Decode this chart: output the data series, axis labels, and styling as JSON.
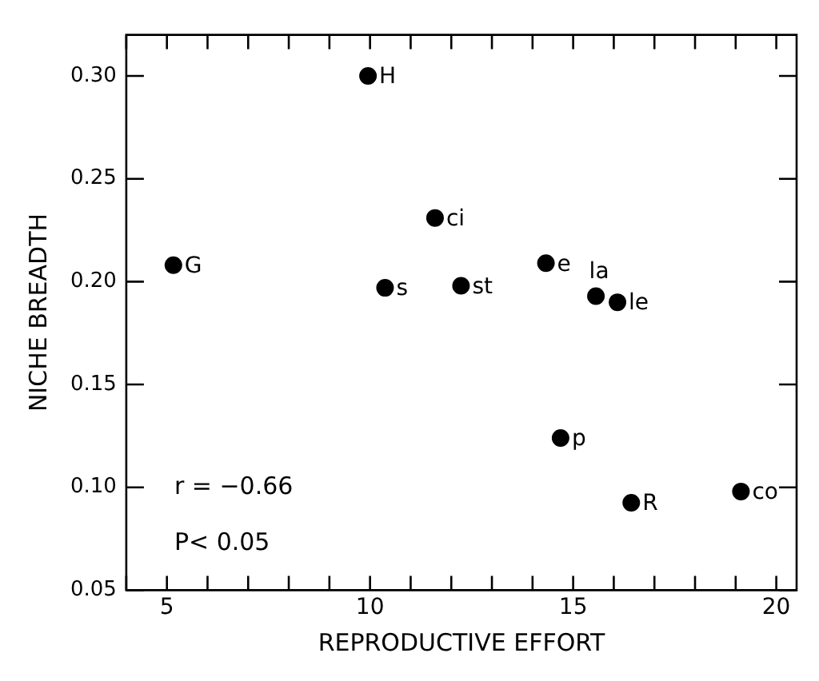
{
  "chart_data": {
    "type": "scatter",
    "xlabel": "REPRODUCTIVE EFFORT",
    "ylabel": "NICHE BREADTH",
    "x": [
      5.16,
      9.95,
      10.37,
      11.6,
      12.24,
      14.33,
      15.56,
      16.09,
      14.69,
      16.43,
      19.13
    ],
    "series": [
      {
        "color": "#000000",
        "values": [
          0.208,
          0.3,
          0.197,
          0.231,
          0.198,
          0.209,
          0.193,
          0.19,
          0.124,
          0.0925,
          0.098
        ]
      }
    ],
    "marker": "circle",
    "grid": false,
    "legend": false,
    "xlim": [
      4,
      20.5
    ],
    "ylim": [
      0.05,
      0.32
    ],
    "xticks": [
      {
        "value": 4,
        "label": null
      },
      5,
      {
        "value": 6,
        "label": null
      },
      {
        "value": 7,
        "label": null
      },
      {
        "value": 8,
        "label": null
      },
      {
        "value": 9,
        "label": null
      },
      10,
      {
        "value": 11,
        "label": null
      },
      {
        "value": 12,
        "label": null
      },
      {
        "value": 13,
        "label": null
      },
      {
        "value": 14,
        "label": null
      },
      15,
      {
        "value": 16,
        "label": null
      },
      {
        "value": 17,
        "label": null
      },
      {
        "value": 18,
        "label": null
      },
      {
        "value": 19,
        "label": null
      },
      20
    ],
    "yticks": [
      {
        "value": 0.05,
        "label": "0.05"
      },
      {
        "value": 0.1,
        "label": "0.10"
      },
      {
        "value": 0.15,
        "label": "0.15"
      },
      {
        "value": 0.2,
        "label": "0.20"
      },
      {
        "value": 0.25,
        "label": "0.25"
      },
      {
        "value": 0.3,
        "label": "0.30"
      }
    ],
    "annotations": [
      {
        "text": "G",
        "x": 5.16,
        "y": 0.208
      },
      {
        "text": "H",
        "x": 9.95,
        "y": 0.3
      },
      {
        "text": "s",
        "x": 10.37,
        "y": 0.197
      },
      {
        "text": "ci",
        "x": 11.6,
        "y": 0.231
      },
      {
        "text": "st",
        "x": 12.24,
        "y": 0.198
      },
      {
        "text": "e",
        "x": 14.33,
        "y": 0.209
      },
      {
        "text": "la",
        "x": 15.56,
        "y": 0.193
      },
      {
        "text": "le",
        "x": 16.09,
        "y": 0.19
      },
      {
        "text": "p",
        "x": 14.69,
        "y": 0.124
      },
      {
        "text": "R",
        "x": 16.43,
        "y": 0.0925
      },
      {
        "text": "co",
        "x": 19.13,
        "y": 0.098
      },
      "r = −0.66",
      "P< 0.05"
    ]
  }
}
